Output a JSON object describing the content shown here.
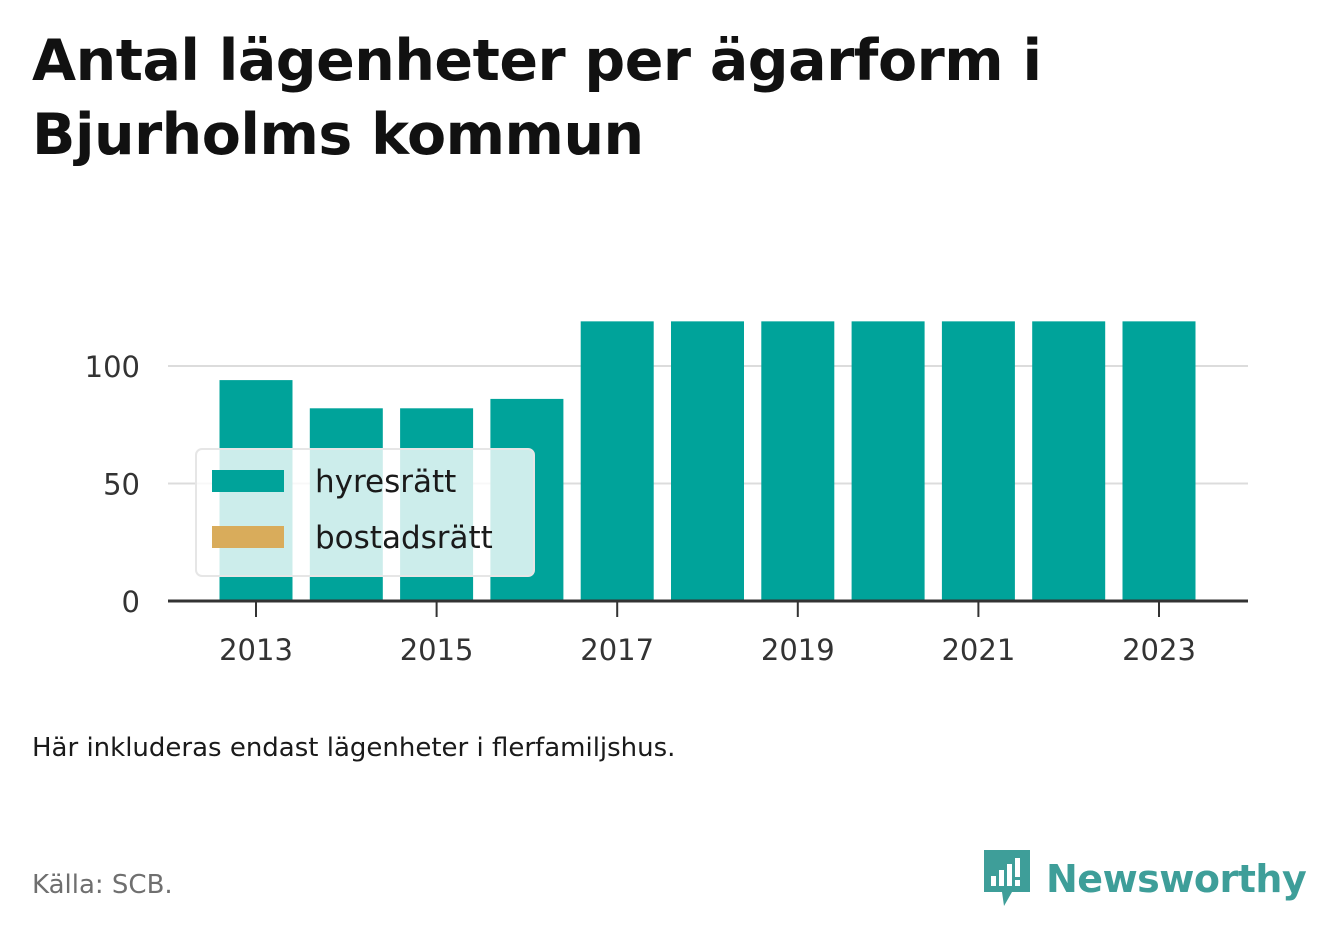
{
  "title": "Antal lägenheter per ägarform i Bjurholms kommun",
  "note": "Här inkluderas endast lägenheter i flerfamiljshus.",
  "source": "Källa: SCB.",
  "brand": {
    "name": "Newsworthy",
    "icon": "newsworthy-logo-icon",
    "color": "#3e9e99"
  },
  "chart_data": {
    "type": "bar",
    "stacked": true,
    "categories": [
      "2013",
      "2014",
      "2015",
      "2016",
      "2017",
      "2018",
      "2019",
      "2020",
      "2021",
      "2022",
      "2023"
    ],
    "x_tick_labels": [
      "2013",
      "2015",
      "2017",
      "2019",
      "2021",
      "2023"
    ],
    "series": [
      {
        "name": "hyresrätt",
        "color": "#00a39a",
        "values": [
          94,
          82,
          82,
          86,
          119,
          119,
          119,
          119,
          119,
          119,
          119
        ]
      },
      {
        "name": "bostadsrätt",
        "color": "#d9ac5b",
        "values": [
          0,
          0,
          0,
          0,
          0,
          0,
          0,
          0,
          0,
          0,
          0
        ]
      }
    ],
    "y_ticks": [
      "0",
      "50",
      "100"
    ],
    "ylim": [
      0,
      119
    ],
    "grid": true,
    "legend_position": "bottom-left",
    "xlabel": "",
    "ylabel": ""
  }
}
